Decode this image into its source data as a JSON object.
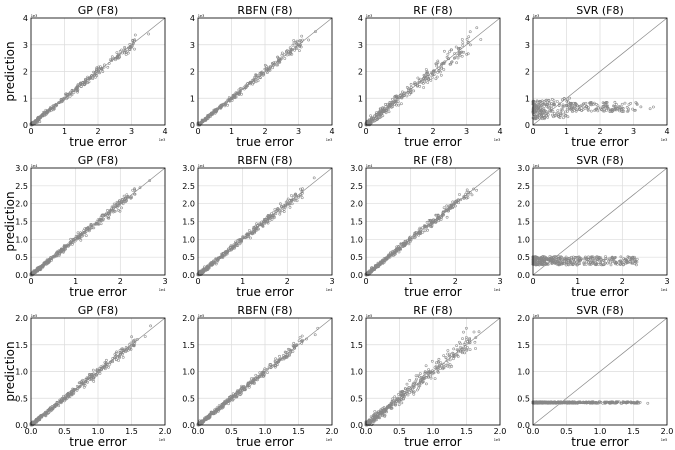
{
  "chart_data": [
    {
      "type": "scatter",
      "title": "GP (F8)",
      "xlabel": "true error",
      "ylabel": "prediction",
      "xlim": [
        0,
        4
      ],
      "ylim": [
        0,
        4
      ],
      "ticks": [
        0,
        1,
        2,
        3,
        4
      ],
      "tick_labels": [
        "0",
        "1",
        "2",
        "3",
        "4"
      ],
      "exponent": "1e3",
      "pattern": "tight",
      "n_points": 340,
      "grid": true,
      "diagonal": true,
      "marker_color": "#888888"
    },
    {
      "type": "scatter",
      "title": "RBFN (F8)",
      "xlabel": "true error",
      "ylabel": "",
      "xlim": [
        0,
        4
      ],
      "ylim": [
        0,
        4
      ],
      "ticks": [
        0,
        1,
        2,
        3,
        4
      ],
      "tick_labels": [
        "0",
        "1",
        "2",
        "3",
        "4"
      ],
      "exponent": "1e3",
      "pattern": "tight",
      "n_points": 340,
      "grid": true,
      "diagonal": true,
      "marker_color": "#888888"
    },
    {
      "type": "scatter",
      "title": "RF (F8)",
      "xlabel": "true error",
      "ylabel": "",
      "xlim": [
        0,
        4
      ],
      "ylim": [
        0,
        4
      ],
      "ticks": [
        0,
        1,
        2,
        3,
        4
      ],
      "tick_labels": [
        "0",
        "1",
        "2",
        "3",
        "4"
      ],
      "exponent": "1e3",
      "pattern": "loose",
      "n_points": 340,
      "grid": true,
      "diagonal": true,
      "marker_color": "#888888"
    },
    {
      "type": "scatter",
      "title": "SVR (F8)",
      "xlabel": "true error",
      "ylabel": "",
      "xlim": [
        0,
        4
      ],
      "ylim": [
        0,
        4
      ],
      "ticks": [
        0,
        1,
        2,
        3,
        4
      ],
      "tick_labels": [
        "0",
        "1",
        "2",
        "3",
        "4"
      ],
      "exponent": "1e3",
      "pattern": "svr_spread",
      "flat_level": 0.55,
      "flat_spread": 0.35,
      "n_points": 340,
      "grid": true,
      "diagonal": true,
      "marker_color": "#888888"
    },
    {
      "type": "scatter",
      "title": "GP (F8)",
      "xlabel": "true error",
      "ylabel": "prediction",
      "xlim": [
        0,
        3
      ],
      "ylim": [
        0,
        3
      ],
      "ticks": [
        0,
        1,
        2,
        3
      ],
      "yticks": [
        0,
        0.5,
        1.0,
        1.5,
        2.0,
        2.5,
        3.0
      ],
      "tick_labels": [
        "0",
        "1",
        "2",
        "3"
      ],
      "ytick_labels": [
        "0.0",
        "0.5",
        "1.0",
        "1.5",
        "2.0",
        "2.5",
        "3.0"
      ],
      "exponent": "1e4",
      "pattern": "tight",
      "n_points": 420,
      "grid": true,
      "diagonal": true,
      "marker_color": "#888888"
    },
    {
      "type": "scatter",
      "title": "RBFN (F8)",
      "xlabel": "true error",
      "ylabel": "",
      "xlim": [
        0,
        3
      ],
      "ylim": [
        0,
        3
      ],
      "ticks": [
        0,
        1,
        2,
        3
      ],
      "yticks": [
        0,
        0.5,
        1.0,
        1.5,
        2.0,
        2.5,
        3.0
      ],
      "tick_labels": [
        "0",
        "1",
        "2",
        "3"
      ],
      "ytick_labels": [
        "0.0",
        "0.5",
        "1.0",
        "1.5",
        "2.0",
        "2.5",
        "3.0"
      ],
      "exponent": "1e4",
      "pattern": "tight",
      "n_points": 420,
      "grid": true,
      "diagonal": true,
      "marker_color": "#888888"
    },
    {
      "type": "scatter",
      "title": "RF (F8)",
      "xlabel": "true error",
      "ylabel": "",
      "xlim": [
        0,
        3
      ],
      "ylim": [
        0,
        3
      ],
      "ticks": [
        0,
        1,
        2,
        3
      ],
      "yticks": [
        0,
        0.5,
        1.0,
        1.5,
        2.0,
        2.5,
        3.0
      ],
      "tick_labels": [
        "0",
        "1",
        "2",
        "3"
      ],
      "ytick_labels": [
        "0.0",
        "0.5",
        "1.0",
        "1.5",
        "2.0",
        "2.5",
        "3.0"
      ],
      "exponent": "1e4",
      "pattern": "tight",
      "n_points": 420,
      "grid": true,
      "diagonal": true,
      "marker_color": "#888888"
    },
    {
      "type": "scatter",
      "title": "SVR (F8)",
      "xlabel": "true error",
      "ylabel": "",
      "xlim": [
        0,
        3
      ],
      "ylim": [
        0,
        3
      ],
      "ticks": [
        0,
        1,
        2,
        3
      ],
      "yticks": [
        0,
        0.5,
        1.0,
        1.5,
        2.0,
        2.5,
        3.0
      ],
      "tick_labels": [
        "0",
        "1",
        "2",
        "3"
      ],
      "ytick_labels": [
        "0.0",
        "0.5",
        "1.0",
        "1.5",
        "2.0",
        "2.5",
        "3.0"
      ],
      "exponent": "1e4",
      "pattern": "flat",
      "flat_level": 0.4,
      "flat_spread": 0.12,
      "n_points": 420,
      "grid": true,
      "diagonal": true,
      "marker_color": "#888888"
    },
    {
      "type": "scatter",
      "title": "GP (F8)",
      "xlabel": "true error",
      "ylabel": "prediction",
      "xlim": [
        0,
        2
      ],
      "ylim": [
        0,
        2
      ],
      "ticks": [
        0,
        0.5,
        1.0,
        1.5,
        2.0
      ],
      "tick_labels": [
        "0.0",
        "0.5",
        "1.0",
        "1.5",
        "2.0"
      ],
      "exponent": "1e5",
      "pattern": "tight",
      "n_points": 420,
      "grid": true,
      "diagonal": true,
      "marker_color": "#888888"
    },
    {
      "type": "scatter",
      "title": "RBFN (F8)",
      "xlabel": "true error",
      "ylabel": "",
      "xlim": [
        0,
        2
      ],
      "ylim": [
        0,
        2
      ],
      "ticks": [
        0,
        0.5,
        1.0,
        1.5,
        2.0
      ],
      "tick_labels": [
        "0.0",
        "0.5",
        "1.0",
        "1.5",
        "2.0"
      ],
      "exponent": "1e5",
      "pattern": "tight",
      "n_points": 420,
      "grid": true,
      "diagonal": true,
      "marker_color": "#888888"
    },
    {
      "type": "scatter",
      "title": "RF (F8)",
      "xlabel": "true error",
      "ylabel": "",
      "xlim": [
        0,
        2
      ],
      "ylim": [
        0,
        2
      ],
      "ticks": [
        0,
        0.5,
        1.0,
        1.5,
        2.0
      ],
      "tick_labels": [
        "0.0",
        "0.5",
        "1.0",
        "1.5",
        "2.0"
      ],
      "exponent": "1e5",
      "pattern": "loose",
      "n_points": 420,
      "grid": true,
      "diagonal": true,
      "marker_color": "#888888"
    },
    {
      "type": "scatter",
      "title": "SVR (F8)",
      "xlabel": "true error",
      "ylabel": "",
      "xlim": [
        0,
        2
      ],
      "ylim": [
        0,
        2
      ],
      "ticks": [
        0,
        0.5,
        1.0,
        1.5,
        2.0
      ],
      "tick_labels": [
        "0.0",
        "0.5",
        "1.0",
        "1.5",
        "2.0"
      ],
      "exponent": "1e5",
      "pattern": "flat",
      "flat_level": 0.42,
      "flat_spread": 0.015,
      "n_points": 420,
      "grid": true,
      "diagonal": true,
      "marker_color": "#888888"
    }
  ]
}
